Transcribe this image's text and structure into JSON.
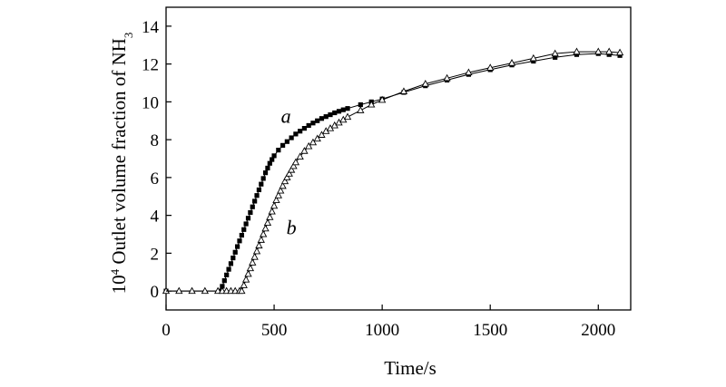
{
  "chart_data": {
    "type": "line",
    "xlabel": "Time/s",
    "ylabel_prefix": "10",
    "ylabel_sup": "4",
    "ylabel_text": " Outlet volume fraction of NH",
    "ylabel_sub": "3",
    "xlim": [
      0,
      2150
    ],
    "ylim": [
      -1,
      15
    ],
    "x_ticks": [
      0,
      500,
      1000,
      1500,
      2000
    ],
    "x_tick_labels": [
      "0",
      "500",
      "1000",
      "1500",
      "2000"
    ],
    "y_ticks": [
      0,
      2,
      4,
      6,
      8,
      10,
      12,
      14
    ],
    "y_tick_labels": [
      "0",
      "2",
      "4",
      "6",
      "8",
      "10",
      "12",
      "14"
    ],
    "grid": false,
    "series": [
      {
        "name": "a",
        "marker": "filled-square",
        "x": [
          0,
          250,
          260,
          270,
          280,
          290,
          300,
          310,
          320,
          330,
          340,
          350,
          360,
          370,
          380,
          390,
          400,
          410,
          420,
          430,
          440,
          450,
          460,
          470,
          480,
          490,
          500,
          520,
          540,
          560,
          580,
          600,
          620,
          640,
          660,
          680,
          700,
          720,
          740,
          760,
          780,
          800,
          820,
          840,
          900,
          950,
          1000,
          1100,
          1200,
          1300,
          1400,
          1500,
          1600,
          1700,
          1800,
          1900,
          2000,
          2050,
          2100
        ],
        "y": [
          0,
          0,
          0.25,
          0.55,
          0.85,
          1.15,
          1.45,
          1.75,
          2.05,
          2.35,
          2.65,
          2.95,
          3.25,
          3.55,
          3.85,
          4.15,
          4.45,
          4.75,
          5.05,
          5.35,
          5.65,
          5.95,
          6.25,
          6.5,
          6.75,
          6.95,
          7.15,
          7.45,
          7.7,
          7.9,
          8.1,
          8.3,
          8.45,
          8.6,
          8.75,
          8.88,
          9.0,
          9.12,
          9.22,
          9.32,
          9.42,
          9.5,
          9.58,
          9.65,
          9.85,
          10.0,
          10.15,
          10.5,
          10.85,
          11.15,
          11.45,
          11.7,
          11.95,
          12.15,
          12.35,
          12.5,
          12.55,
          12.5,
          12.45
        ]
      },
      {
        "name": "b",
        "marker": "open-triangle",
        "x": [
          0,
          60,
          120,
          180,
          240,
          260,
          280,
          300,
          320,
          340,
          350,
          360,
          370,
          380,
          390,
          400,
          410,
          420,
          430,
          440,
          450,
          460,
          470,
          480,
          490,
          500,
          510,
          520,
          530,
          540,
          550,
          560,
          570,
          580,
          590,
          600,
          620,
          640,
          660,
          680,
          700,
          720,
          740,
          760,
          780,
          800,
          820,
          840,
          900,
          950,
          1000,
          1100,
          1200,
          1300,
          1400,
          1500,
          1600,
          1700,
          1800,
          1900,
          2000,
          2050,
          2100
        ],
        "y": [
          0,
          0,
          0,
          0,
          0,
          0,
          0,
          0,
          0,
          0,
          0,
          0.3,
          0.6,
          0.9,
          1.2,
          1.5,
          1.8,
          2.1,
          2.4,
          2.7,
          3.0,
          3.3,
          3.6,
          3.9,
          4.2,
          4.5,
          4.8,
          5.05,
          5.3,
          5.55,
          5.8,
          6.0,
          6.2,
          6.4,
          6.6,
          6.8,
          7.1,
          7.4,
          7.65,
          7.85,
          8.05,
          8.25,
          8.45,
          8.6,
          8.75,
          8.9,
          9.05,
          9.2,
          9.55,
          9.85,
          10.1,
          10.55,
          10.95,
          11.25,
          11.55,
          11.8,
          12.05,
          12.3,
          12.55,
          12.65,
          12.65,
          12.65,
          12.6
        ]
      }
    ],
    "annotations": [
      {
        "text": "a",
        "x": 555,
        "y": 8.9
      },
      {
        "text": "b",
        "x": 580,
        "y": 3.0
      }
    ]
  }
}
